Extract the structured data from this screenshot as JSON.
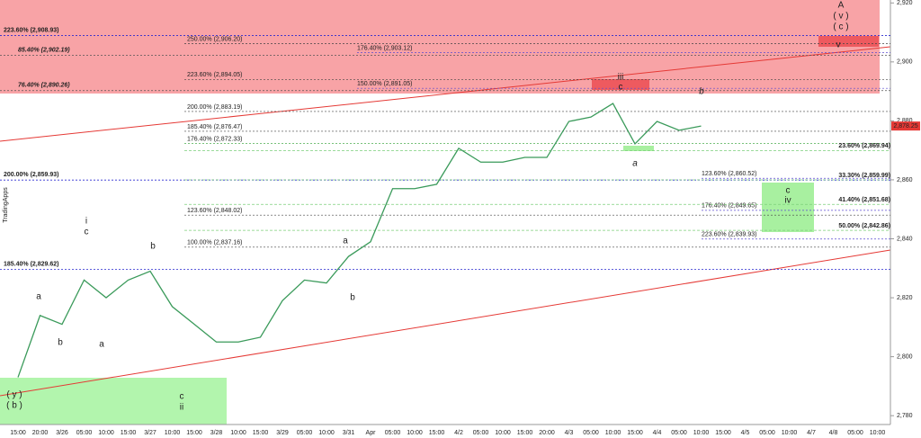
{
  "chart_data": {
    "type": "line",
    "color": "#3a9a5a",
    "categories": [
      "15:00",
      "20:00",
      "3/26",
      "05:00",
      "10:00",
      "15:00",
      "3/27",
      "10:00",
      "15:00",
      "3/28",
      "10:00",
      "15:00",
      "3/29",
      "05:00",
      "10:00",
      "3/31",
      "Apr",
      "05:00",
      "10:00",
      "15:00",
      "4/2",
      "05:00",
      "10:00",
      "15:00",
      "20:00",
      "4/3",
      "05:00",
      "10:00",
      "15:00",
      "4/4",
      "05:00",
      "10:00",
      "15:00",
      "4/5",
      "05:00",
      "10:00",
      "4/7",
      "4/8",
      "05:00",
      "10:00"
    ],
    "values": [
      2793,
      2814,
      2811,
      2826,
      2820,
      2826,
      2829,
      2817,
      2811,
      2805,
      2805,
      2806.6,
      2819,
      2826,
      2825,
      2834,
      2839,
      2857,
      2857,
      2858.5,
      2870.7,
      2866,
      2866,
      2867.6,
      2867.6,
      2879.8,
      2881.3,
      2885.9,
      2872.2,
      2879.8,
      2876.8,
      2878.25,
      null,
      null,
      null,
      null,
      null,
      null,
      null,
      null
    ],
    "ylim": [
      2777,
      2921
    ],
    "yticks": [
      {
        "value": 2780,
        "label": "2,780"
      },
      {
        "value": 2800,
        "label": "2,800"
      },
      {
        "value": 2820,
        "label": "2,820"
      },
      {
        "value": 2840,
        "label": "2,840"
      },
      {
        "value": 2860,
        "label": "2,860"
      },
      {
        "value": 2880,
        "label": "2,880"
      },
      {
        "value": 2900,
        "label": "2,900"
      },
      {
        "value": 2920,
        "label": "2,920"
      }
    ],
    "last_price": {
      "value": 2878.25,
      "label": "2,878.25"
    },
    "left_levels": [
      {
        "label": "223.60% (2,908.93)",
        "value": 2908.93,
        "color": "#2a2ad0"
      },
      {
        "label": "85.40% (2,902.19)",
        "value": 2902.19,
        "color": "#e53935"
      },
      {
        "label": "76.40% (2,890.26)",
        "value": 2890.26,
        "color": "#e53935"
      },
      {
        "label": "200.00% (2,859.93)",
        "value": 2859.93,
        "color": "#2a2ad0"
      },
      {
        "label": "185.40% (2,829.62)",
        "value": 2829.62,
        "color": "#2a2ad0"
      }
    ],
    "fib_levels": [
      {
        "label": "250.00% (2,906.20)",
        "value": 2906.2
      },
      {
        "label": "223.60% (2,894.05)",
        "value": 2894.05
      },
      {
        "label": "200.00% (2,883.19)",
        "value": 2883.19
      },
      {
        "label": "185.40% (2,876.47)",
        "value": 2876.47
      },
      {
        "label": "176.40% (2,872.33)",
        "value": 2872.33
      },
      {
        "label": "123.60% (2,848.02)",
        "value": 2848.02
      },
      {
        "label": "100.00% (2,837.16)",
        "value": 2837.16
      }
    ],
    "ext_levels": [
      {
        "label": "176.40% (2,903.12)",
        "value": 2903.12
      },
      {
        "label": "150.00% (2,891.05)",
        "value": 2891.05
      },
      {
        "label": "123.60% (2,860.52)",
        "value": 2860.52
      },
      {
        "label": "176.40% (2,849.65)",
        "value": 2849.65
      },
      {
        "label": "223.60% (2,839.93)",
        "value": 2839.93
      }
    ],
    "retrace_levels": [
      {
        "label": "23.60% (2,869.94)",
        "value": 2869.94
      },
      {
        "label": "33.30% (2,859.99)",
        "value": 2859.99
      },
      {
        "label": "41.40% (2,851.68)",
        "value": 2851.68
      },
      {
        "label": "50.00% (2,842.86)",
        "value": 2842.86
      }
    ],
    "wave_labels": [
      "A",
      "( v )",
      "( c )",
      "v",
      "iii",
      "c",
      "b",
      "a",
      "c",
      "iv",
      "i",
      "c",
      "b",
      "a",
      "b",
      "a",
      "a",
      "b",
      "c",
      "ii",
      "( y )",
      "( b )"
    ],
    "watermark": "TradingApps"
  }
}
